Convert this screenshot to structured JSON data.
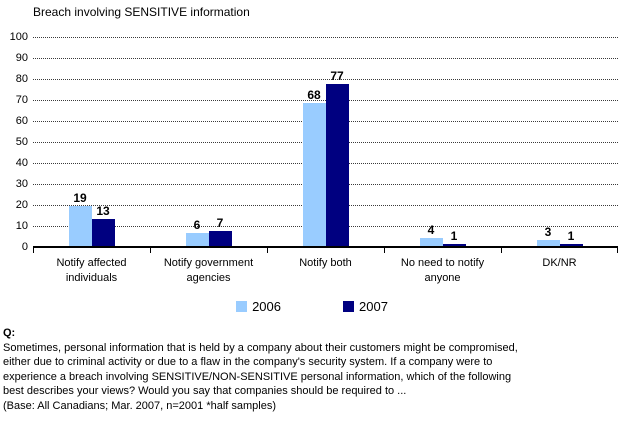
{
  "chart_data": {
    "type": "bar",
    "title": "Breach involving SENSITIVE information",
    "categories": [
      "Notify affected\nindividuals",
      "Notify government\nagencies",
      "Notify both",
      "No need to notify\nanyone",
      "DK/NR"
    ],
    "series": [
      {
        "name": "2006",
        "color": "#99CCFF",
        "values": [
          19,
          6,
          68,
          4,
          3
        ]
      },
      {
        "name": "2007",
        "color": "#000080",
        "values": [
          13,
          7,
          77,
          1,
          1
        ]
      }
    ],
    "ylabel": "",
    "xlabel": "",
    "ylim": [
      0,
      100
    ],
    "ytick_step": 10,
    "grid": "horizontal-dotted",
    "legend_position": "bottom-center"
  },
  "question": {
    "label": "Q:",
    "lines": [
      "Sometimes, personal information that is held by a company about their customers might be compromised,",
      "either due to criminal activity or due to a flaw in the company's security system. If a company were to",
      "experience a breach involving SENSITIVE/NON-SENSITIVE personal information, which of the following",
      "best describes your views? Would you say that companies should be required to ..."
    ],
    "base": "(Base: All Canadians; Mar. 2007, n=2001 *half samples)"
  }
}
